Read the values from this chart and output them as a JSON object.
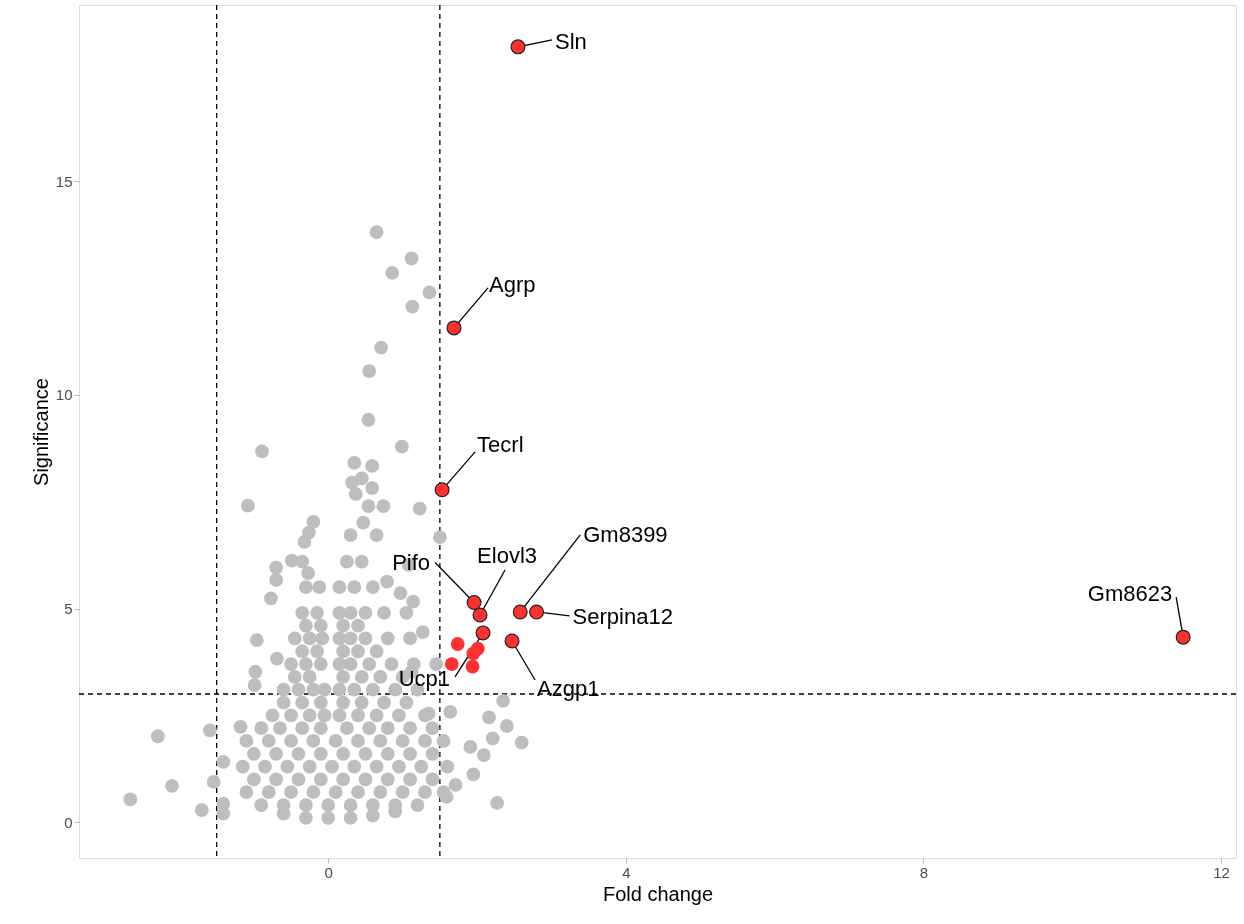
{
  "chart_data": {
    "type": "scatter",
    "xlabel": "Fold change",
    "ylabel": "Significance",
    "xlim": [
      -3.35,
      12.2
    ],
    "ylim": [
      -0.84,
      19.13
    ],
    "xticks": [
      {
        "value": 0,
        "label": "0"
      },
      {
        "value": 4,
        "label": "4"
      },
      {
        "value": 8,
        "label": "8"
      },
      {
        "value": 12,
        "label": "12"
      }
    ],
    "yticks": [
      0,
      5,
      10,
      15
    ],
    "grid": false,
    "marker": "circle",
    "series": [
      {
        "color": "#bebebe",
        "x": [
          0.65,
          1.12,
          0.86,
          1.36,
          1.13,
          0.71,
          0.55,
          0.54,
          0.99,
          -0.89,
          -1.08,
          1.23,
          1.5,
          0.35,
          0.59,
          0.32,
          0.45,
          0.59,
          0.37,
          0.54,
          0.74,
          0.47,
          0.65,
          0.3,
          -0.2,
          -0.26,
          -0.32,
          -0.49,
          -0.7,
          -0.7,
          -0.77,
          -0.27,
          0.79,
          0.97,
          1.14,
          1.08,
          -2.29,
          -2.66,
          -2.1,
          -1.7,
          -1.59,
          -1.54,
          -1.41,
          -1.41,
          -1.41,
          -0.96,
          -0.98,
          -0.99,
          -0.69,
          2.35,
          2.16,
          2.4,
          2.6,
          2.21,
          1.95,
          2.27,
          1.71,
          1.64,
          2.09,
          1.91,
          1.27,
          1.12,
          1.35,
          -1.18,
          1.59,
          -0.6,
          -0.3,
          0,
          0.3,
          0.6,
          0.9,
          -1.1,
          -0.8,
          -0.5,
          -0.2,
          0.1,
          0.4,
          0.7,
          1.0,
          1.3,
          1.55,
          -1.15,
          -0.85,
          -0.55,
          -0.25,
          0.05,
          0.35,
          0.65,
          0.95,
          1.25,
          1.6,
          -1.1,
          -0.8,
          -0.5,
          -0.2,
          0.1,
          0.4,
          0.7,
          1.0,
          1.3,
          1.55,
          -0.75,
          -0.5,
          -0.25,
          -0.05,
          0.15,
          0.4,
          0.65,
          0.95,
          1.3,
          -0.6,
          -0.4,
          -0.2,
          -0.05,
          0.15,
          0.35,
          0.6,
          0.9,
          1.2,
          -0.5,
          -0.3,
          -0.1,
          0.15,
          0.3,
          0.55,
          0.85,
          1.15,
          1.45,
          -0.45,
          -0.25,
          -0.08,
          0.15,
          0.3,
          0.5,
          0.8,
          1.1,
          -0.35,
          -0.15,
          0.15,
          0.3,
          0.5,
          0.75,
          1.05,
          -0.3,
          -0.12,
          0.15,
          0.35,
          0.6,
          -0.35,
          0.25,
          0.45,
          -0.9,
          -0.6,
          -0.3,
          0,
          0.3,
          0.6,
          0.9,
          1.2,
          -1.0,
          -0.7,
          -0.4,
          -0.1,
          0.2,
          0.5,
          0.8,
          1.1,
          1.4,
          -1.0,
          -0.7,
          -0.4,
          -0.1,
          0.2,
          0.5,
          0.8,
          1.1,
          1.4,
          -0.9,
          -0.65,
          -0.35,
          -0.1,
          0.25,
          0.55,
          0.8,
          1.1,
          1.4,
          -0.6,
          -0.35,
          -0.1,
          0.2,
          0.45,
          0.75,
          1.05,
          -0.45,
          -0.25,
          0.2,
          0.45,
          0.7,
          1.0,
          -0.35,
          -0.15,
          0.2,
          0.4,
          0.65,
          -0.3,
          -0.1,
          0.2,
          0.4
        ],
        "values": [
          13.81,
          13.2,
          12.86,
          12.4,
          12.07,
          11.11,
          10.56,
          9.42,
          8.79,
          8.68,
          7.41,
          7.34,
          6.67,
          8.41,
          8.34,
          7.95,
          8.05,
          7.82,
          7.68,
          7.4,
          7.4,
          7.01,
          6.72,
          6.72,
          7.03,
          6.78,
          6.56,
          6.12,
          5.96,
          5.67,
          5.24,
          5.83,
          5.63,
          5.36,
          5.16,
          6.02,
          2.01,
          0.53,
          0.85,
          0.28,
          2.15,
          0.94,
          0.43,
          0.2,
          1.41,
          4.26,
          3.52,
          3.21,
          3.83,
          2.84,
          2.45,
          2.25,
          1.86,
          1.96,
          1.12,
          0.45,
          0.87,
          2.58,
          1.57,
          1.76,
          4.45,
          3.52,
          2.54,
          2.23,
          0.59,
          0.2,
          0.1,
          0.1,
          0.1,
          0.15,
          0.25,
          0.7,
          0.7,
          0.7,
          0.7,
          0.7,
          0.7,
          0.7,
          0.7,
          0.7,
          0.7,
          1.3,
          1.3,
          1.3,
          1.3,
          1.3,
          1.3,
          1.3,
          1.3,
          1.3,
          1.3,
          1.9,
          1.9,
          1.9,
          1.9,
          1.9,
          1.9,
          1.9,
          1.9,
          1.9,
          1.9,
          2.5,
          2.5,
          2.5,
          2.5,
          2.5,
          2.5,
          2.5,
          2.5,
          2.5,
          3.1,
          3.1,
          3.1,
          3.1,
          3.1,
          3.1,
          3.1,
          3.1,
          3.1,
          3.7,
          3.7,
          3.7,
          3.7,
          3.7,
          3.7,
          3.7,
          3.7,
          3.7,
          4.3,
          4.3,
          4.3,
          4.3,
          4.3,
          4.3,
          4.3,
          4.3,
          4.9,
          4.9,
          4.9,
          4.9,
          4.9,
          4.9,
          4.9,
          5.5,
          5.5,
          5.5,
          5.5,
          5.5,
          6.1,
          6.1,
          6.1,
          0.4,
          0.4,
          0.4,
          0.4,
          0.4,
          0.4,
          0.4,
          0.4,
          1.0,
          1.0,
          1.0,
          1.0,
          1.0,
          1.0,
          1.0,
          1.0,
          1.0,
          1.6,
          1.6,
          1.6,
          1.6,
          1.6,
          1.6,
          1.6,
          1.6,
          1.6,
          2.2,
          2.2,
          2.2,
          2.2,
          2.2,
          2.2,
          2.2,
          2.2,
          2.2,
          2.8,
          2.8,
          2.8,
          2.8,
          2.8,
          2.8,
          2.8,
          3.4,
          3.4,
          3.4,
          3.4,
          3.4,
          3.4,
          4.0,
          4.0,
          4.0,
          4.0,
          4.0,
          4.6,
          4.6,
          4.6,
          4.6
        ]
      },
      {
        "color": "#ff3030",
        "x": [
          2.55,
          1.69,
          1.53,
          1.96,
          2.04,
          2.58,
          2.8,
          2.08,
          2.47,
          11.49,
          1.74,
          2.01,
          1.95,
          1.66,
          1.94
        ],
        "values": [
          18.15,
          11.57,
          7.78,
          5.14,
          4.85,
          4.92,
          4.92,
          4.43,
          4.24,
          4.33,
          4.17,
          4.06,
          3.95,
          3.7,
          3.64
        ]
      }
    ],
    "ref_lines": [
      {
        "axis": "x",
        "value": -1.5,
        "line_style": "dashed",
        "color": "#000000"
      },
      {
        "axis": "x",
        "value": 1.5,
        "line_style": "dashed",
        "color": "#000000"
      },
      {
        "axis": "y",
        "value": 3,
        "line_style": "dashed",
        "color": "#000000"
      }
    ],
    "annotations": [
      {
        "text": "Sln",
        "x": 2.55,
        "y": 18.15
      },
      {
        "text": "Agrp",
        "x": 1.69,
        "y": 11.57
      },
      {
        "text": "Tecrl",
        "x": 1.53,
        "y": 7.78
      },
      {
        "text": "Pifo",
        "x": 1.96,
        "y": 5.14
      },
      {
        "text": "Elovl3",
        "x": 2.04,
        "y": 4.85
      },
      {
        "text": "Gm8399",
        "x": 2.58,
        "y": 4.92
      },
      {
        "text": "Serpina12",
        "x": 2.8,
        "y": 4.92
      },
      {
        "text": "Ucp1",
        "x": 2.08,
        "y": 4.43
      },
      {
        "text": "Azgp1",
        "x": 2.47,
        "y": 4.24
      },
      {
        "text": "Gm8623",
        "x": 11.49,
        "y": 4.33
      }
    ]
  }
}
